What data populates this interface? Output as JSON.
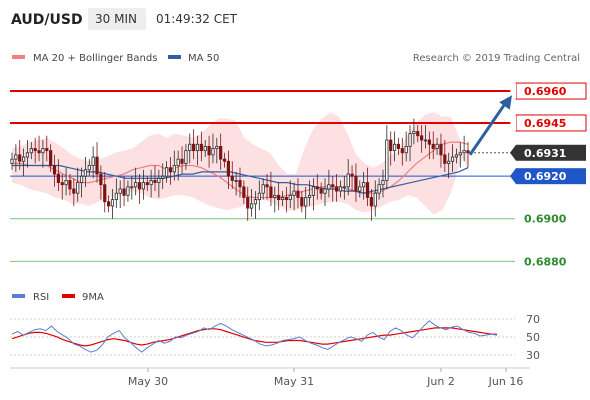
{
  "header": {
    "symbol": "AUD/USD",
    "timeframe": "30 MIN",
    "time": "01:49:32 CET"
  },
  "legend": {
    "ma20": "MA 20 + Bollinger Bands",
    "ma50": "MA 50",
    "rsi": "RSI",
    "ma9": "9MA"
  },
  "credit": "Research © 2019 Trading Central",
  "colors": {
    "up_candle": "#2a2a2a",
    "down_candle": "#7a1414",
    "resistance": "#e00000",
    "support": "#7cc47c",
    "ma20": "#f08080",
    "ma50": "#2f5f9f",
    "band_fill": "#fde0e2",
    "arrow": "#2e5f9e",
    "rsi_line": "#5a7fcf",
    "ma9_line": "#e00000",
    "current_label_bg": "#333333",
    "ma50_label_bg": "#1f56c8"
  },
  "chart_data": {
    "type": "candlestick",
    "price_levels": [
      {
        "value": 0.696,
        "label": "0.6960",
        "kind": "resistance"
      },
      {
        "value": 0.6945,
        "label": "0.6945",
        "kind": "resistance"
      },
      {
        "value": 0.6931,
        "label": "0.6931",
        "kind": "current"
      },
      {
        "value": 0.692,
        "label": "0.6920",
        "kind": "ma50"
      },
      {
        "value": 0.69,
        "label": "0.6900",
        "kind": "support"
      },
      {
        "value": 0.688,
        "label": "0.6880",
        "kind": "support"
      }
    ],
    "ylim": [
      0.68731,
      0.69713
    ],
    "x_labels": [
      "May 30",
      "May 31",
      "Jun 2",
      "Jun 16"
    ],
    "candles_close": [
      0.6928,
      0.693,
      0.6927,
      0.6929,
      0.6931,
      0.6933,
      0.6932,
      0.6931,
      0.6933,
      0.6932,
      0.6925,
      0.6921,
      0.6917,
      0.6916,
      0.6918,
      0.6914,
      0.6912,
      0.6917,
      0.692,
      0.6923,
      0.6925,
      0.6929,
      0.6921,
      0.6916,
      0.6908,
      0.6906,
      0.6909,
      0.6912,
      0.6914,
      0.6911,
      0.6915,
      0.6915,
      0.6917,
      0.6914,
      0.6917,
      0.6916,
      0.6918,
      0.6917,
      0.6919,
      0.692,
      0.6924,
      0.6922,
      0.6925,
      0.6928,
      0.6926,
      0.6932,
      0.6935,
      0.6932,
      0.6935,
      0.6932,
      0.6934,
      0.693,
      0.6933,
      0.6934,
      0.6928,
      0.6927,
      0.692,
      0.6918,
      0.6918,
      0.6915,
      0.691,
      0.6905,
      0.6907,
      0.6909,
      0.6912,
      0.6916,
      0.6915,
      0.691,
      0.6911,
      0.6909,
      0.691,
      0.6909,
      0.6911,
      0.6913,
      0.691,
      0.6906,
      0.691,
      0.6911,
      0.6915,
      0.6914,
      0.6912,
      0.6914,
      0.6916,
      0.6915,
      0.6913,
      0.6915,
      0.6915,
      0.6921,
      0.692,
      0.6913,
      0.6915,
      0.6917,
      0.691,
      0.6906,
      0.6912,
      0.6916,
      0.6918,
      0.6937,
      0.6932,
      0.6935,
      0.6933,
      0.6931,
      0.6934,
      0.694,
      0.6941,
      0.6939,
      0.6937,
      0.6937,
      0.6935,
      0.6933,
      0.6935,
      0.693,
      0.6926,
      0.6927,
      0.6929,
      0.693,
      0.6931,
      0.6932,
      0.6931
    ],
    "ma20_band_upper": [
      0.6933,
      0.6934,
      0.6936,
      0.6937,
      0.6938,
      0.6936,
      0.6933,
      0.693,
      0.6928,
      0.6927,
      0.6928,
      0.6929,
      0.6931,
      0.6932,
      0.6933,
      0.6936,
      0.6939,
      0.694,
      0.6938,
      0.694,
      0.6939,
      0.6938,
      0.694,
      0.6944,
      0.6947,
      0.6947,
      0.6946,
      0.6938,
      0.6935,
      0.6933,
      0.6931,
      0.6925,
      0.6921,
      0.6921,
      0.6933,
      0.6942,
      0.6947,
      0.695,
      0.6948,
      0.694,
      0.693,
      0.6926,
      0.6924,
      0.6926,
      0.693,
      0.6932,
      0.694,
      0.6945,
      0.6949,
      0.695,
      0.6948,
      0.6948,
      0.6938,
      0.6921
    ],
    "ma20_band_lower": [
      0.6917,
      0.6916,
      0.6914,
      0.6913,
      0.6912,
      0.691,
      0.6909,
      0.6907,
      0.6907,
      0.6906,
      0.6908,
      0.6909,
      0.691,
      0.6912,
      0.6913,
      0.6912,
      0.691,
      0.6909,
      0.691,
      0.6911,
      0.6911,
      0.691,
      0.6908,
      0.6906,
      0.6905,
      0.6904,
      0.6905,
      0.6906,
      0.6908,
      0.6909,
      0.6908,
      0.6906,
      0.6904,
      0.6904,
      0.6905,
      0.6906,
      0.6907,
      0.6908,
      0.6908,
      0.6907,
      0.6904,
      0.6903,
      0.6904,
      0.6906,
      0.6908,
      0.6909,
      0.6911,
      0.691,
      0.6906,
      0.6902,
      0.6904,
      0.6912,
      0.6925,
      0.6933
    ],
    "ma20": [
      0.6926,
      0.6926,
      0.6925,
      0.6925,
      0.6925,
      0.6923,
      0.6921,
      0.6919,
      0.6917,
      0.6917,
      0.6918,
      0.6919,
      0.692,
      0.6921,
      0.6923,
      0.6924,
      0.6925,
      0.6925,
      0.6923,
      0.6924,
      0.6925,
      0.6925,
      0.6924,
      0.6922,
      0.692,
      0.6917,
      0.6914,
      0.6911,
      0.691,
      0.691,
      0.691,
      0.691,
      0.6911,
      0.6912,
      0.6913,
      0.6914,
      0.6915,
      0.6915,
      0.6915,
      0.6914,
      0.6913,
      0.6912,
      0.6912,
      0.6913,
      0.6915,
      0.6918,
      0.6922,
      0.6926,
      0.6929,
      0.6932,
      0.6935,
      0.6936,
      0.6936,
      0.6935
    ],
    "ma50": [
      0.6925,
      0.6925,
      0.6925,
      0.6925,
      0.6925,
      0.6925,
      0.6924,
      0.6923,
      0.6922,
      0.6922,
      0.6921,
      0.692,
      0.6919,
      0.6919,
      0.6919,
      0.6919,
      0.6919,
      0.692,
      0.6921,
      0.6921,
      0.6922,
      0.6922,
      0.6922,
      0.6922,
      0.6921,
      0.692,
      0.6919,
      0.6918,
      0.6917,
      0.6917,
      0.6916,
      0.6916,
      0.6915,
      0.6914,
      0.6914,
      0.6913,
      0.6913,
      0.6912,
      0.6913,
      0.6914,
      0.6915,
      0.6916,
      0.6917,
      0.6918,
      0.6919,
      0.692,
      0.6921,
      0.6922,
      0.6924
    ],
    "arrow_target": 0.6958,
    "rsi": {
      "ticks": [
        70,
        50,
        30
      ],
      "ylim": [
        22,
        80
      ],
      "rsi": [
        53,
        56,
        52,
        55,
        58,
        59,
        57,
        62,
        56,
        52,
        48,
        42,
        40,
        36,
        33,
        35,
        41,
        50,
        54,
        57,
        49,
        44,
        38,
        33,
        38,
        42,
        46,
        43,
        45,
        50,
        49,
        52,
        54,
        56,
        60,
        58,
        62,
        65,
        62,
        58,
        55,
        52,
        49,
        46,
        42,
        40,
        41,
        43,
        46,
        47,
        48,
        50,
        46,
        43,
        41,
        38,
        36,
        40,
        44,
        47,
        50,
        48,
        45,
        52,
        55,
        50,
        47,
        56,
        60,
        57,
        52,
        49,
        55,
        62,
        68,
        63,
        60,
        58,
        61,
        62,
        58,
        55,
        54,
        51,
        52,
        53,
        52
      ],
      "ma9": [
        48,
        50,
        52,
        54,
        55,
        55,
        54,
        52,
        50,
        47,
        45,
        43,
        41,
        40,
        41,
        43,
        45,
        47,
        48,
        47,
        46,
        44,
        42,
        41,
        42,
        44,
        45,
        46,
        47,
        49,
        51,
        53,
        55,
        57,
        58,
        59,
        59,
        58,
        56,
        54,
        52,
        50,
        48,
        46,
        45,
        44,
        44,
        44,
        45,
        46,
        46,
        46,
        45,
        44,
        43,
        42,
        42,
        43,
        44,
        45,
        46,
        47,
        48,
        49,
        50,
        51,
        52,
        52,
        53,
        54,
        55,
        56,
        57,
        58,
        59,
        60,
        60,
        60,
        60,
        59,
        58,
        57,
        56,
        55,
        54,
        53,
        53
      ]
    }
  }
}
